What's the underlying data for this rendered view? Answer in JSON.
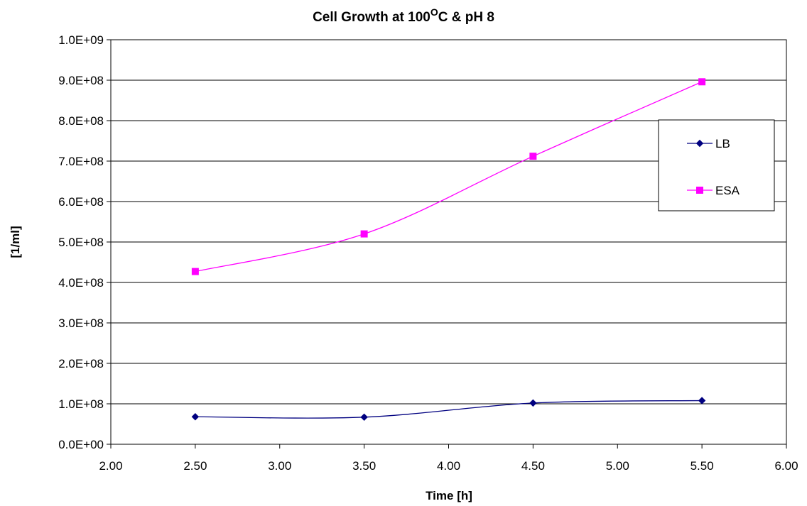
{
  "chart_data": {
    "type": "line",
    "title": {
      "main": "Cell Growth at 100",
      "superscript": "O",
      "rest": "C & pH 8"
    },
    "xlabel": "Time [h]",
    "ylabel": "[1/ml]",
    "xlim": [
      2.0,
      6.0
    ],
    "ylim": [
      0,
      1000000000
    ],
    "x_ticks": [
      "2.00",
      "2.50",
      "3.00",
      "3.50",
      "4.00",
      "4.50",
      "5.00",
      "5.50",
      "6.00"
    ],
    "y_ticks": [
      "0.0E+00",
      "1.0E+08",
      "2.0E+08",
      "3.0E+08",
      "4.0E+08",
      "5.0E+08",
      "6.0E+08",
      "7.0E+08",
      "8.0E+08",
      "9.0E+08",
      "1.0E+09"
    ],
    "grid": "horizontal",
    "legend_position": "right",
    "series": [
      {
        "name": "LB",
        "color": "#000080",
        "marker": "diamond",
        "x": [
          2.5,
          3.5,
          4.5,
          5.5
        ],
        "y": [
          68000000,
          67000000,
          102000000,
          108000000
        ]
      },
      {
        "name": "ESA",
        "color": "#FF00FF",
        "marker": "square",
        "x": [
          2.5,
          3.5,
          4.5,
          5.5
        ],
        "y": [
          427000000,
          520000000,
          712000000,
          896000000
        ]
      }
    ]
  }
}
